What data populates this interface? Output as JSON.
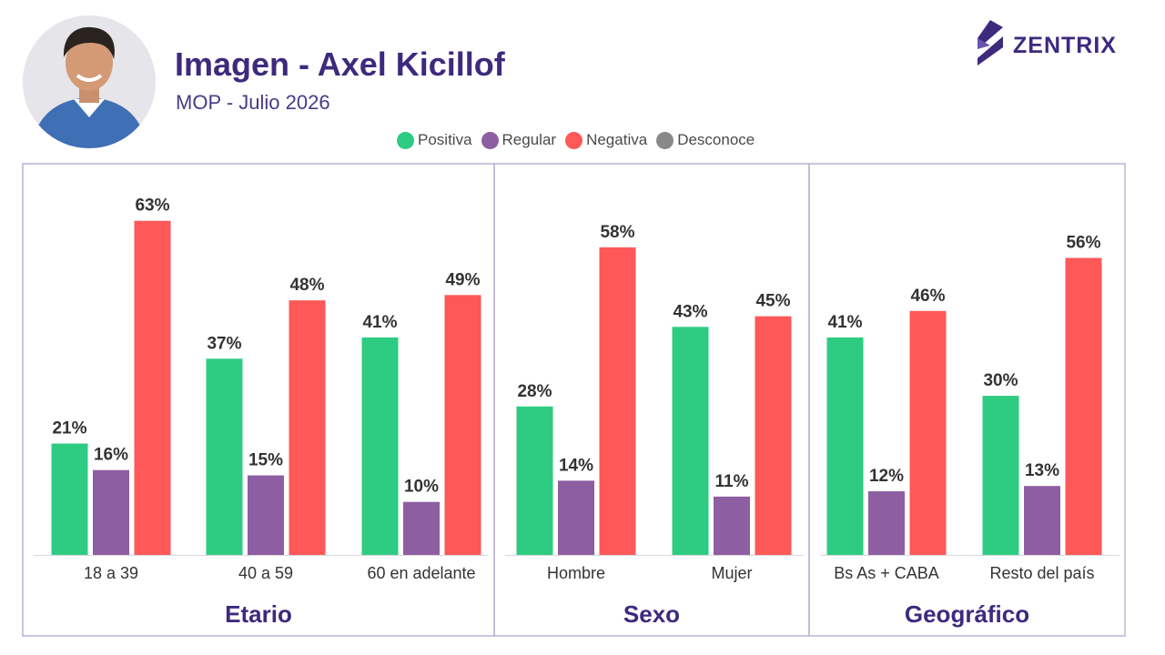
{
  "header": {
    "title": "Imagen - Axel Kicillof",
    "subtitle": "MOP - Julio 2026"
  },
  "brand": {
    "name": "ZENTRIX"
  },
  "avatar": {
    "icon": "person-photo"
  },
  "colors": {
    "positiva": "#2ecc82",
    "regular": "#8e5ea2",
    "negativa": "#fe5858",
    "desconoce": "#888888",
    "frame": "#b9b4d6",
    "title": "#3d2a7d"
  },
  "legend": [
    {
      "label": "Positiva",
      "color": "#2ecc82"
    },
    {
      "label": "Regular",
      "color": "#8e5ea2"
    },
    {
      "label": "Negativa",
      "color": "#fe5858"
    },
    {
      "label": "Desconoce",
      "color": "#888888"
    }
  ],
  "chart_data": {
    "type": "bar",
    "title": "Imagen - Axel Kicillof",
    "subtitle": "MOP - Julio 2026",
    "ylim": [
      0,
      70
    ],
    "value_suffix": "%",
    "grid": false,
    "legend_position": "top-center",
    "series_names": [
      "Positiva",
      "Regular",
      "Negativa",
      "Desconoce"
    ],
    "groups": [
      {
        "name": "Etario",
        "categories": [
          "18 a 39",
          "40 a 59",
          "60 en adelante"
        ],
        "series": [
          {
            "name": "Positiva",
            "values": [
              21,
              37,
              41
            ]
          },
          {
            "name": "Regular",
            "values": [
              16,
              15,
              10
            ]
          },
          {
            "name": "Negativa",
            "values": [
              63,
              48,
              49
            ]
          }
        ]
      },
      {
        "name": "Sexo",
        "categories": [
          "Hombre",
          "Mujer"
        ],
        "series": [
          {
            "name": "Positiva",
            "values": [
              28,
              43
            ]
          },
          {
            "name": "Regular",
            "values": [
              14,
              11
            ]
          },
          {
            "name": "Negativa",
            "values": [
              58,
              45
            ]
          }
        ]
      },
      {
        "name": "Geográfico",
        "categories": [
          "Bs As + CABA",
          "Resto del país"
        ],
        "series": [
          {
            "name": "Positiva",
            "values": [
              41,
              30
            ]
          },
          {
            "name": "Regular",
            "values": [
              12,
              13
            ]
          },
          {
            "name": "Negativa",
            "values": [
              46,
              56
            ]
          }
        ]
      }
    ]
  }
}
